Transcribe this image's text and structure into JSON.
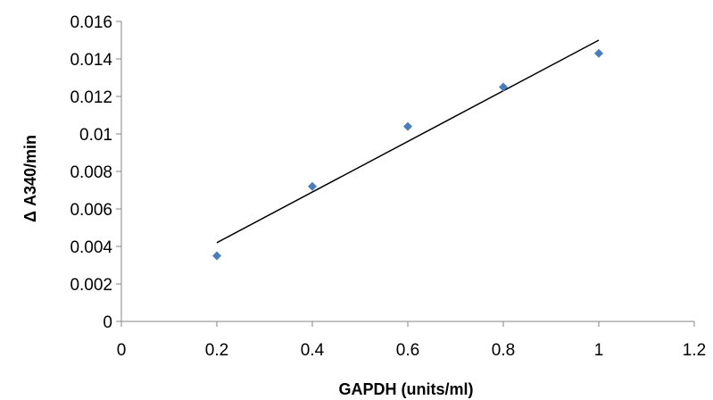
{
  "chart_data": {
    "type": "scatter",
    "title": "",
    "xlabel": "GAPDH (units/ml)",
    "ylabel": "Δ A340/min",
    "xlim": [
      0,
      1.2
    ],
    "ylim": [
      0,
      0.016
    ],
    "x_ticks": [
      "0",
      "0.2",
      "0.4",
      "0.6",
      "0.8",
      "1",
      "1.2"
    ],
    "y_ticks": [
      "0",
      "0.002",
      "0.004",
      "0.006",
      "0.008",
      "0.01",
      "0.012",
      "0.014",
      "0.016"
    ],
    "grid": false,
    "legend": "none",
    "series": [
      {
        "marker": "diamond",
        "color": "#4a7ebb",
        "x": [
          0.2,
          0.4,
          0.6,
          0.8,
          1.0
        ],
        "y": [
          0.0035,
          0.0072,
          0.0104,
          0.0125,
          0.0143
        ]
      }
    ],
    "trendline": {
      "type": "linear",
      "color": "#000000",
      "x": [
        0.2,
        1.0
      ],
      "y": [
        0.0042,
        0.015
      ]
    }
  }
}
